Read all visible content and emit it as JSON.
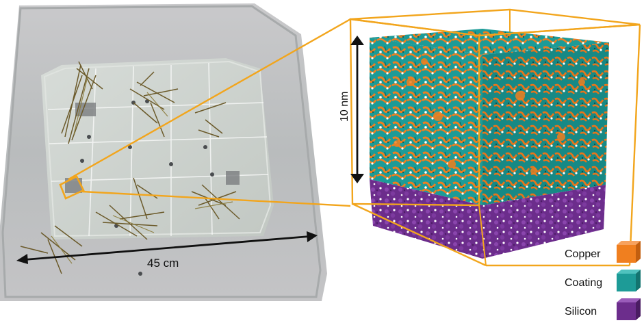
{
  "photo": {
    "scale_label": "45 cm"
  },
  "simulation": {
    "height_label": "10 nm"
  },
  "legend": [
    {
      "label": "Copper",
      "color": "#f07f1f"
    },
    {
      "label": "Coating",
      "color": "#1d9b97"
    },
    {
      "label": "Silicon",
      "color": "#6c2d8c"
    }
  ],
  "colors": {
    "highlight": "#f2a51c",
    "copper": "#f07f1f",
    "coating": "#1d9b97",
    "silicon": "#6c2d8c"
  }
}
